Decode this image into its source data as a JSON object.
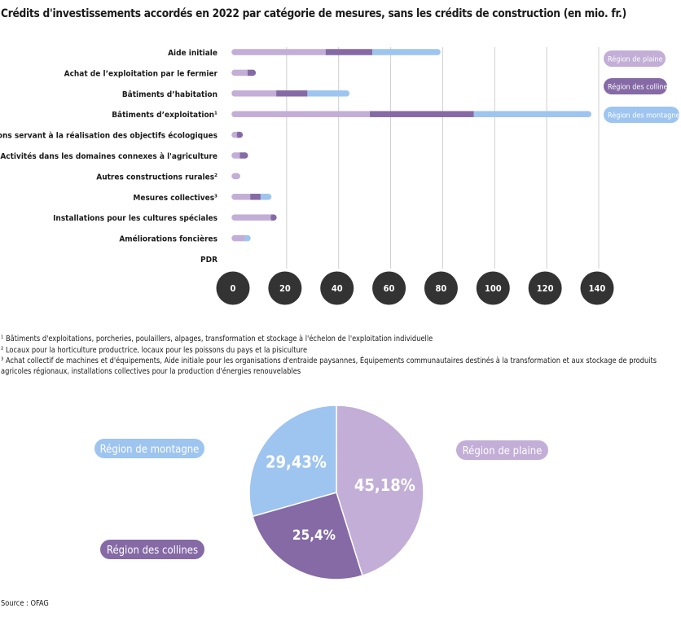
{
  "title": "Crédits d'investissements accordés en 2022 par catégorie de mesures, sans les crédits de construction (en mio. fr.)",
  "colors": {
    "plaine": "#c2aed6",
    "collines": "#856aa6",
    "montagne": "#9ec4f0",
    "axis_bubble": "#333333",
    "grid": "#cfcfcf"
  },
  "chart_data": [
    {
      "type": "bar",
      "stacked": true,
      "orientation": "horizontal",
      "categories": [
        "Aide initiale",
        "Achat de l’exploitation par le fermier",
        "Bâtiments d’habitation",
        "Bâtiments d’exploitation¹",
        "Installations servant à la réalisation des objectifs écologiques",
        "Activités dans les domaines connexes à l'agriculture",
        "Autres constructions rurales²",
        "Mesures collectives³",
        "Installations pour les cultures spéciales",
        "Améliorations foncières",
        "PDR"
      ],
      "series": [
        {
          "name": "Région de plaine",
          "values": [
            35,
            5,
            16,
            52,
            1,
            2,
            1,
            6,
            14,
            4,
            0
          ]
        },
        {
          "name": "Région des collines",
          "values": [
            18,
            2,
            12,
            40,
            1,
            2,
            0,
            4,
            1,
            0,
            0
          ]
        },
        {
          "name": "Région des montagne",
          "values": [
            25,
            0,
            15,
            44,
            0,
            0,
            0,
            3,
            0,
            1,
            0
          ]
        }
      ],
      "xticks": [
        "0",
        "20",
        "40",
        "60",
        "80",
        "100",
        "120",
        "140"
      ],
      "xlim": [
        0,
        140
      ],
      "legend_position": "right"
    },
    {
      "type": "pie",
      "slices": [
        {
          "name": "Région de plaine",
          "value": 45.18,
          "label": "45,18%"
        },
        {
          "name": "Région des collines",
          "value": 25.4,
          "label": "25,4%"
        },
        {
          "name": "Région de montagne",
          "value": 29.43,
          "label": "29,43%"
        }
      ]
    }
  ],
  "footnotes": [
    "¹ Bâtiments d'exploitations, porcheries, poulaillers, alpages,  transformation et stockage à l'échelon de l'exploitation individuelle",
    "² Locaux pour la horticulture productrice, locaux pour les poissons du pays et la pisiculture",
    "³ Achat collectif de machines et d'équipements,  Aide initiale pour les organisations d'entraide paysannes, Équipements communautaires destinés à la transformation et aux stockage de produits agricoles régionaux, installations collectives pour la production d'énergies renouvelables"
  ],
  "source": "Source : OFAG"
}
